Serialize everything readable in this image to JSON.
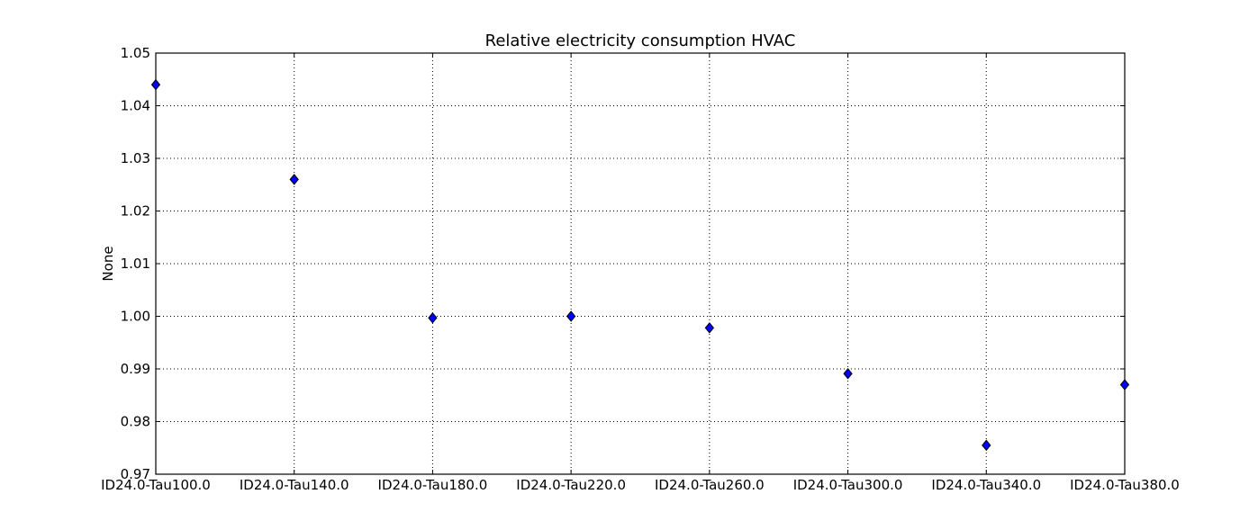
{
  "colors": {
    "marker_fill": "#0000ff",
    "marker_edge": "#000000",
    "grid": "#000000",
    "axes": "#000000",
    "background": "#ffffff"
  },
  "chart_data": {
    "type": "scatter",
    "title": "Relative electricity consumption HVAC",
    "xlabel": "",
    "ylabel": "None",
    "marker": "diamond",
    "grid": true,
    "categories": [
      "ID24.0-Tau100.0",
      "ID24.0-Tau140.0",
      "ID24.0-Tau180.0",
      "ID24.0-Tau220.0",
      "ID24.0-Tau260.0",
      "ID24.0-Tau300.0",
      "ID24.0-Tau340.0",
      "ID24.0-Tau380.0"
    ],
    "values": [
      1.044,
      1.026,
      0.9997,
      1.0,
      0.9978,
      0.9891,
      0.9755,
      0.987
    ],
    "ylim": [
      0.97,
      1.05
    ],
    "yticks": [
      "0.97",
      "0.98",
      "0.99",
      "1.00",
      "1.01",
      "1.02",
      "1.03",
      "1.04",
      "1.05"
    ]
  }
}
